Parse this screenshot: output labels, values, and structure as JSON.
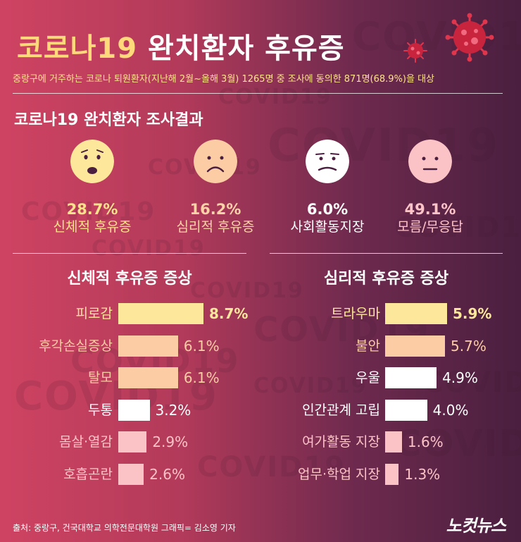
{
  "title_part1": "코로나19",
  "title_part2": "완치환자 후유증",
  "subtitle": "중랑구에 거주하는 코로나 퇴원환자(지난해 2월~올해 3월) 1265명 중 조사에 동의한 871명(68.9%)을 대상",
  "survey": {
    "heading": "코로나19 완치환자 조사결과",
    "items": [
      {
        "pct": "28.7%",
        "label": "신체적 후유증",
        "value": 28.7,
        "face_color": "#fde79a",
        "text_color": "#ffe28a"
      },
      {
        "pct": "16.2%",
        "label": "심리적 후유증",
        "value": 16.2,
        "face_color": "#fccca4",
        "text_color": "#ffd2a8"
      },
      {
        "pct": "6.0%",
        "label": "사회활동지장",
        "value": 6.0,
        "face_color": "#ffffff",
        "text_color": "#ffffff"
      },
      {
        "pct": "49.1%",
        "label": "모름/무응답",
        "value": 49.1,
        "face_color": "#fcc3c6",
        "text_color": "#ffc4c8"
      }
    ]
  },
  "watermark_text": "COVID19",
  "chart_data": [
    {
      "type": "bar",
      "title": "신체적 후유증 증상",
      "categories": [
        "피로감",
        "후각손실증상",
        "탈모",
        "두통",
        "몸살·열감",
        "호흡곤란"
      ],
      "values": [
        8.7,
        6.1,
        6.1,
        3.2,
        2.9,
        2.6
      ],
      "labels": [
        "8.7%",
        "6.1%",
        "6.1%",
        "3.2%",
        "2.9%",
        "2.6%"
      ],
      "colors": [
        "#fde79a",
        "#fccca4",
        "#fccca4",
        "#ffffff",
        "#fcc3c6",
        "#fcc3c6"
      ]
    },
    {
      "type": "bar",
      "title": "심리적 후유증 증상",
      "categories": [
        "트라우마",
        "불안",
        "우울",
        "인간관계 고립",
        "여가활동 지장",
        "업무·학업 지장"
      ],
      "values": [
        5.9,
        5.7,
        4.9,
        4.0,
        1.6,
        1.3
      ],
      "labels": [
        "5.9%",
        "5.7%",
        "4.9%",
        "4.0%",
        "1.6%",
        "1.3%"
      ],
      "colors": [
        "#fde79a",
        "#fccca4",
        "#ffffff",
        "#ffffff",
        "#fcc3c6",
        "#fcc3c6"
      ]
    }
  ],
  "footer": "출처: 중랑구, 건국대학교 의학전문대학원    그래픽= 김소영 기자",
  "logo": "노컷뉴스"
}
